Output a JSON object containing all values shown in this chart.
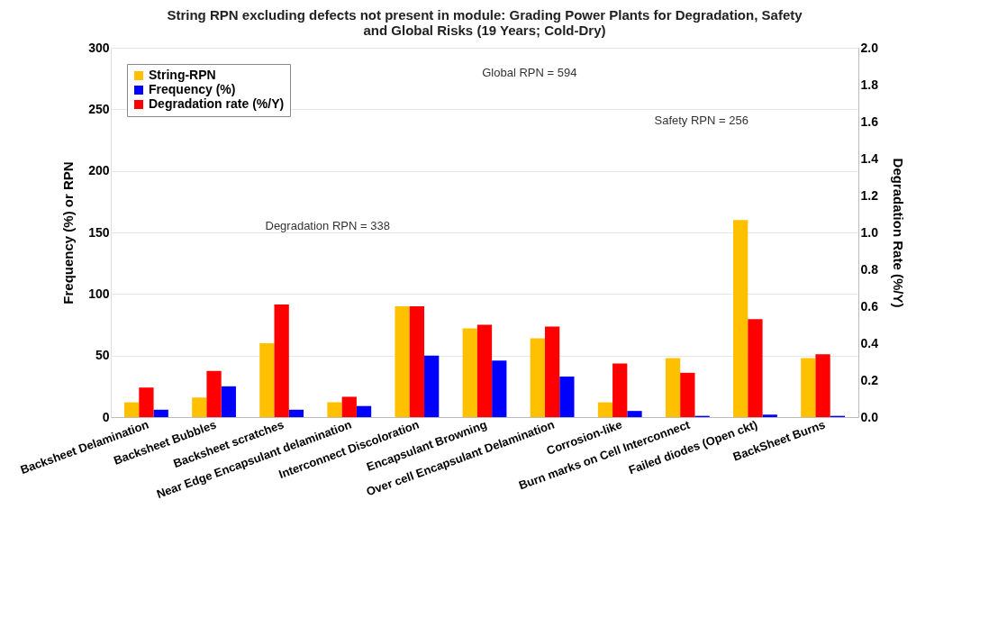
{
  "chart_data": {
    "type": "bar",
    "title": [
      "String RPN excluding defects not present in module: Grading Power Plants for Degradation, Safety",
      "and Global Risks (19 Years; Cold-Dry)"
    ],
    "ylabel": "Frequency (%) or RPN",
    "y2label": "Degradation Rate (%/Y)",
    "categories": [
      "Backsheet Delamination",
      "Backsheet Bubbles",
      "Backsheet scratches",
      "Near Edge Encapsulant delamination",
      "Interconnect Discoloration",
      "Encapsulant Browning",
      "Over cell Encapsulant Delamination",
      "Corrosion-like",
      "Burn marks on Cell Interconnect",
      "Failed diodes (Open ckt)",
      "BackSheet Burns"
    ],
    "series": [
      {
        "name": "String-RPN",
        "color": "#ffc000",
        "values": [
          12,
          16,
          60,
          12,
          90,
          72,
          64,
          12,
          48,
          160,
          48
        ]
      },
      {
        "name": "Frequency (%)",
        "color": "#0000ff",
        "values": [
          6,
          25,
          6,
          9,
          50,
          46,
          33,
          5,
          1,
          2,
          1
        ]
      },
      {
        "name": "Degradation rate (%/Y)",
        "color": "#ff0000",
        "axis": "y2",
        "values": [
          0.16,
          0.25,
          0.61,
          0.11,
          0.6,
          0.5,
          0.49,
          0.29,
          0.24,
          0.53,
          0.34
        ]
      }
    ],
    "ylim": [
      0,
      300
    ],
    "yticks": [
      0,
      50,
      100,
      150,
      200,
      250,
      300
    ],
    "y2lim": [
      0,
      2
    ],
    "y2ticks": [
      {
        "value": 0,
        "label": "0.0"
      },
      0.2,
      0.4,
      0.6,
      0.8,
      {
        "value": 1,
        "label": "1.0"
      },
      1.2,
      1.4,
      1.6,
      1.8,
      {
        "value": 2,
        "label": "2.0"
      }
    ],
    "annotations": [
      "Global RPN = 594",
      "Safety RPN = 256",
      "Degradation RPN = 338"
    ],
    "grid": "y",
    "legend": "top left"
  }
}
